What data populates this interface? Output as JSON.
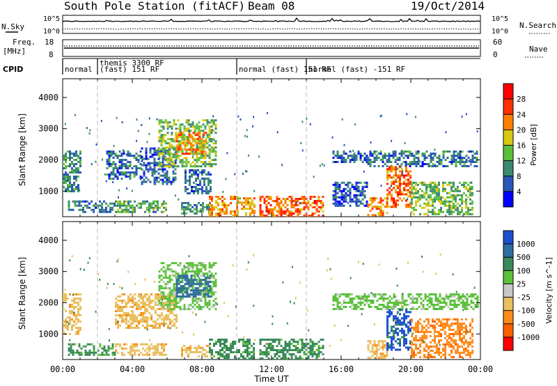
{
  "header": {
    "station": "South Pole Station (fitACF)",
    "beam": "Beam 08",
    "date": "19/Oct/2014"
  },
  "strips": {
    "nsky_label": "N.Sky",
    "nsearch_label": "N.Search",
    "freq_label_1": "Freq.",
    "freq_label_2": "[MHz]",
    "nave_label": "Nave",
    "cpid_label": "CPID",
    "nsky_ticks": [
      "10^5",
      "10^0"
    ],
    "nsearch_ticks": [
      "10^5",
      "10^0"
    ],
    "freq_ticks": [
      "18",
      "8"
    ],
    "nave_ticks": [
      "60",
      "0"
    ]
  },
  "cpid_segments": [
    {
      "start_h": 0.0,
      "end_h": 2.0,
      "label": "normal"
    },
    {
      "start_h": 2.0,
      "end_h": 10.0,
      "label_1": "themis 3300 RF",
      "label_2": "(fast) 151 RF"
    },
    {
      "start_h": 10.0,
      "end_h": 14.0,
      "label": "normal (fast) 151 RF"
    },
    {
      "start_h": 14.0,
      "end_h": 24.0,
      "label": "normal (fast) -151 RF"
    }
  ],
  "axes": {
    "ylabel": "Slant Range [km]",
    "xlabel": "Time UT",
    "y_ticks": [
      1000,
      2000,
      3000,
      4000
    ],
    "x_ticks": [
      "00:00",
      "04:00",
      "08:00",
      "12:00",
      "16:00",
      "20:00",
      "00:00"
    ]
  },
  "chart_data": [
    {
      "type": "heatmap",
      "title": "",
      "quantity": "Power [dB]",
      "x_range_hours": [
        0,
        24
      ],
      "ylim": [
        180,
        4600
      ],
      "colorbar": {
        "label": "Power [dB]",
        "ticks": [
          4,
          8,
          12,
          16,
          20,
          24,
          28
        ],
        "range": [
          0,
          32
        ],
        "colors": [
          "#0000ff",
          "#2a56b8",
          "#3b8a70",
          "#5cbf3c",
          "#d8c810",
          "#ff8000",
          "#ff3000",
          "#ff0000"
        ]
      },
      "regions": [
        {
          "t0": 0.0,
          "t1": 1.0,
          "r0": 1000,
          "r1": 2300,
          "val": 10
        },
        {
          "t0": 0.3,
          "t1": 1.0,
          "r0": 400,
          "r1": 700,
          "val": 8
        },
        {
          "t0": 1.0,
          "t1": 3.0,
          "r0": 350,
          "r1": 700,
          "val": 8
        },
        {
          "t0": 2.5,
          "t1": 4.5,
          "r0": 1400,
          "r1": 2300,
          "val": 8
        },
        {
          "t0": 3.0,
          "t1": 6.0,
          "r0": 300,
          "r1": 700,
          "val": 12
        },
        {
          "t0": 4.5,
          "t1": 6.5,
          "r0": 1200,
          "r1": 2400,
          "val": 7
        },
        {
          "t0": 5.5,
          "t1": 8.8,
          "r0": 1800,
          "r1": 3300,
          "val": 14
        },
        {
          "t0": 6.5,
          "t1": 8.2,
          "r0": 2200,
          "r1": 2900,
          "val": 22
        },
        {
          "t0": 7.0,
          "t1": 8.5,
          "r0": 900,
          "r1": 1700,
          "val": 7
        },
        {
          "t0": 6.8,
          "t1": 8.4,
          "r0": 250,
          "r1": 650,
          "val": 10
        },
        {
          "t0": 8.4,
          "t1": 10.0,
          "r0": 230,
          "r1": 850,
          "val": 22
        },
        {
          "t0": 10.0,
          "t1": 11.0,
          "r0": 230,
          "r1": 800,
          "val": 20
        },
        {
          "t0": 11.3,
          "t1": 15.0,
          "r0": 230,
          "r1": 850,
          "val": 24
        },
        {
          "t0": 15.5,
          "t1": 17.5,
          "r0": 1900,
          "r1": 2300,
          "val": 7
        },
        {
          "t0": 17.5,
          "t1": 23.8,
          "r0": 1800,
          "r1": 2300,
          "val": 8
        },
        {
          "t0": 15.5,
          "t1": 17.5,
          "r0": 500,
          "r1": 1300,
          "val": 6
        },
        {
          "t0": 17.5,
          "t1": 18.6,
          "r0": 230,
          "r1": 800,
          "val": 22
        },
        {
          "t0": 18.6,
          "t1": 20.0,
          "r0": 500,
          "r1": 1800,
          "val": 24
        },
        {
          "t0": 20.0,
          "t1": 23.5,
          "r0": 230,
          "r1": 1300,
          "val": 14
        }
      ]
    },
    {
      "type": "heatmap",
      "title": "",
      "quantity": "Velocity [m s^-1]",
      "x_range_hours": [
        0,
        24
      ],
      "ylim": [
        180,
        4600
      ],
      "colorbar": {
        "label": "Velocity [m s^-1]",
        "ticks": [
          1000,
          500,
          100,
          25,
          -25,
          -100,
          -500,
          -1000
        ],
        "colors": [
          "#1a4fcf",
          "#2e6e9e",
          "#3a8a5a",
          "#5cc13c",
          "#c8c8c8",
          "#e8c060",
          "#ff8c1a",
          "#ff6000",
          "#ff0000"
        ]
      },
      "regions": [
        {
          "t0": 0.0,
          "t1": 1.0,
          "r0": 1000,
          "r1": 2300,
          "val": -100
        },
        {
          "t0": 0.3,
          "t1": 3.0,
          "r0": 350,
          "r1": 700,
          "val": 100
        },
        {
          "t0": 3.0,
          "t1": 6.0,
          "r0": 300,
          "r1": 700,
          "val": -100
        },
        {
          "t0": 3.0,
          "t1": 6.5,
          "r0": 1200,
          "r1": 2300,
          "val": -100
        },
        {
          "t0": 5.5,
          "t1": 8.8,
          "r0": 1800,
          "r1": 3300,
          "val": 25
        },
        {
          "t0": 6.5,
          "t1": 8.5,
          "r0": 2200,
          "r1": 2900,
          "val": 500
        },
        {
          "t0": 6.8,
          "t1": 8.5,
          "r0": 250,
          "r1": 650,
          "val": -100
        },
        {
          "t0": 8.4,
          "t1": 11.0,
          "r0": 230,
          "r1": 850,
          "val": 100
        },
        {
          "t0": 11.3,
          "t1": 15.0,
          "r0": 230,
          "r1": 850,
          "val": 100
        },
        {
          "t0": 15.5,
          "t1": 23.8,
          "r0": 1800,
          "r1": 2300,
          "val": 25
        },
        {
          "t0": 17.5,
          "t1": 18.6,
          "r0": 230,
          "r1": 800,
          "val": -100
        },
        {
          "t0": 18.6,
          "t1": 20.0,
          "r0": 500,
          "r1": 1800,
          "val": 1000
        },
        {
          "t0": 20.0,
          "t1": 23.5,
          "r0": 230,
          "r1": 1500,
          "val": -500
        }
      ]
    }
  ]
}
